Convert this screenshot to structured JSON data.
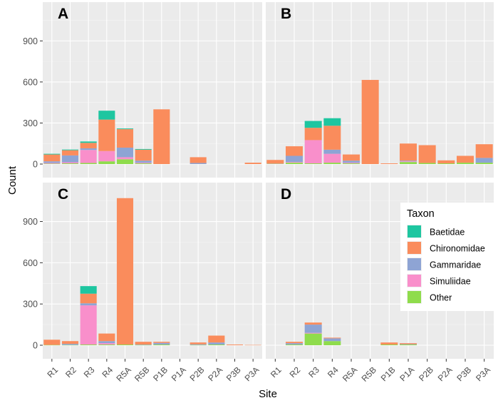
{
  "chart_data": {
    "type": "bar",
    "stacked": true,
    "xlabel": "Site",
    "ylabel": "Count",
    "ylim": [
      0,
      1100
    ],
    "yticks": [
      0,
      300,
      600,
      900
    ],
    "colors": {
      "Baetidae": "#1ec6a0",
      "Chironomidae": "#fa8c5c",
      "Gammaridae": "#8ea4d4",
      "Simuliidae": "#f98fcb",
      "Other": "#8fdc4c"
    },
    "stack_order": [
      "Other",
      "Simuliidae",
      "Gammaridae",
      "Chironomidae",
      "Baetidae"
    ],
    "legend": {
      "title": "Taxon",
      "entries": [
        "Baetidae",
        "Chironomidae",
        "Gammaridae",
        "Simuliidae",
        "Other"
      ],
      "placement": "right, panel D"
    },
    "panels": [
      {
        "label": "A",
        "categories": [
          "R1",
          "R2",
          "R3",
          "R4",
          "R5A",
          "R5B",
          "P1B",
          "P1A",
          "P2B",
          "P2A",
          "P3B",
          "P3A"
        ],
        "series": [
          {
            "name": "Other",
            "values": [
              3,
              5,
              8,
              20,
              35,
              5,
              0,
              0,
              0,
              0,
              0,
              0
            ]
          },
          {
            "name": "Simuliidae",
            "values": [
              5,
              8,
              95,
              75,
              15,
              5,
              0,
              0,
              0,
              0,
              0,
              0
            ]
          },
          {
            "name": "Gammaridae",
            "values": [
              12,
              50,
              12,
              0,
              70,
              15,
              0,
              0,
              8,
              0,
              0,
              0
            ]
          },
          {
            "name": "Chironomidae",
            "values": [
              50,
              38,
              40,
              230,
              135,
              80,
              400,
              0,
              42,
              0,
              0,
              10
            ]
          },
          {
            "name": "Baetidae",
            "values": [
              5,
              5,
              10,
              65,
              5,
              5,
              0,
              0,
              0,
              0,
              0,
              0
            ]
          }
        ]
      },
      {
        "label": "B",
        "categories": [
          "R1",
          "R2",
          "R3",
          "R4",
          "R5A",
          "R5B",
          "P1B",
          "P1A",
          "P2B",
          "P2A",
          "P3B",
          "P3A"
        ],
        "series": [
          {
            "name": "Other",
            "values": [
              3,
              10,
              5,
              10,
              5,
              0,
              0,
              15,
              8,
              5,
              10,
              10
            ]
          },
          {
            "name": "Simuliidae",
            "values": [
              2,
              5,
              170,
              65,
              5,
              0,
              0,
              5,
              0,
              0,
              0,
              0
            ]
          },
          {
            "name": "Gammaridae",
            "values": [
              0,
              45,
              0,
              30,
              15,
              0,
              0,
              5,
              0,
              0,
              0,
              35
            ]
          },
          {
            "name": "Chironomidae",
            "values": [
              25,
              70,
              90,
              175,
              45,
              615,
              5,
              125,
              130,
              22,
              50,
              100
            ]
          },
          {
            "name": "Baetidae",
            "values": [
              0,
              0,
              50,
              55,
              0,
              0,
              0,
              0,
              0,
              0,
              0,
              0
            ]
          }
        ]
      },
      {
        "label": "C",
        "categories": [
          "R1",
          "R2",
          "R3",
          "R4",
          "R5A",
          "R5B",
          "P1B",
          "P1A",
          "P2B",
          "P2A",
          "P3B",
          "P3A"
        ],
        "series": [
          {
            "name": "Other",
            "values": [
              2,
              2,
              5,
              5,
              5,
              2,
              5,
              0,
              2,
              5,
              0,
              0
            ]
          },
          {
            "name": "Simuliidae",
            "values": [
              0,
              0,
              285,
              10,
              0,
              0,
              0,
              0,
              0,
              0,
              0,
              0
            ]
          },
          {
            "name": "Gammaridae",
            "values": [
              0,
              8,
              15,
              15,
              0,
              3,
              12,
              0,
              5,
              15,
              0,
              0
            ]
          },
          {
            "name": "Chironomidae",
            "values": [
              38,
              20,
              70,
              55,
              1065,
              20,
              8,
              0,
              13,
              50,
              5,
              2
            ]
          },
          {
            "name": "Baetidae",
            "values": [
              0,
              0,
              55,
              0,
              0,
              0,
              0,
              0,
              0,
              0,
              0,
              0
            ]
          }
        ]
      },
      {
        "label": "D",
        "categories": [
          "R1",
          "R2",
          "R3",
          "R4",
          "R5A",
          "R5B",
          "P1B",
          "P1A",
          "P2B",
          "P2A",
          "P3B",
          "P3A"
        ],
        "series": [
          {
            "name": "Other",
            "values": [
              0,
              5,
              85,
              30,
              0,
              0,
              5,
              5,
              0,
              0,
              0,
              0
            ]
          },
          {
            "name": "Simuliidae",
            "values": [
              0,
              0,
              5,
              0,
              0,
              0,
              0,
              0,
              0,
              0,
              0,
              0
            ]
          },
          {
            "name": "Gammaridae",
            "values": [
              0,
              10,
              60,
              20,
              0,
              0,
              0,
              3,
              0,
              0,
              0,
              0
            ]
          },
          {
            "name": "Chironomidae",
            "values": [
              0,
              10,
              15,
              5,
              0,
              0,
              15,
              7,
              0,
              0,
              0,
              0
            ]
          },
          {
            "name": "Baetidae",
            "values": [
              0,
              0,
              0,
              0,
              0,
              0,
              0,
              0,
              0,
              0,
              0,
              0
            ]
          }
        ]
      }
    ]
  }
}
